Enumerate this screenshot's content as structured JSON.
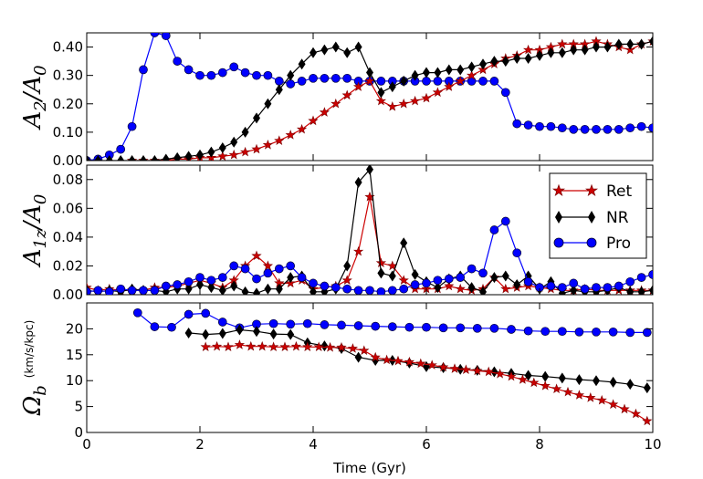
{
  "chart_data": [
    {
      "type": "line",
      "panel": "top",
      "ylabel": "A_2/A_0",
      "ylabel_parts": {
        "main": "A",
        "sub": "2",
        "sep": "/A",
        "sub2": "0"
      },
      "xlim": [
        0,
        10
      ],
      "ylim": [
        0,
        0.45
      ],
      "yticks": [
        0.0,
        0.1,
        0.2,
        0.3,
        0.4
      ],
      "ytick_labels": [
        "0.00",
        "0.10",
        "0.20",
        "0.30",
        "0.40"
      ],
      "series": [
        {
          "name": "Ret",
          "color": "#cc0000",
          "marker": "star",
          "x": [
            0.8,
            1.0,
            1.2,
            1.4,
            1.6,
            1.8,
            2.0,
            2.2,
            2.4,
            2.6,
            2.8,
            3.0,
            3.2,
            3.4,
            3.6,
            3.8,
            4.0,
            4.2,
            4.4,
            4.6,
            4.8,
            5.0,
            5.2,
            5.4,
            5.6,
            5.8,
            6.0,
            6.2,
            6.4,
            6.6,
            6.8,
            7.0,
            7.2,
            7.4,
            7.6,
            7.8,
            8.0,
            8.2,
            8.4,
            8.6,
            8.8,
            9.0,
            9.2,
            9.4,
            9.6,
            9.8,
            10.0
          ],
          "values": [
            0.0,
            0.0,
            0.0,
            0.0,
            0.005,
            0.005,
            0.01,
            0.01,
            0.015,
            0.02,
            0.03,
            0.04,
            0.055,
            0.07,
            0.09,
            0.11,
            0.14,
            0.17,
            0.2,
            0.23,
            0.26,
            0.28,
            0.21,
            0.19,
            0.2,
            0.21,
            0.22,
            0.24,
            0.26,
            0.28,
            0.3,
            0.32,
            0.34,
            0.36,
            0.37,
            0.39,
            0.39,
            0.4,
            0.41,
            0.41,
            0.41,
            0.42,
            0.41,
            0.4,
            0.39,
            0.41,
            0.42
          ]
        },
        {
          "name": "NR",
          "color": "#000000",
          "marker": "diamond",
          "x": [
            0.0,
            0.2,
            0.4,
            0.6,
            0.8,
            1.0,
            1.2,
            1.4,
            1.6,
            1.8,
            2.0,
            2.2,
            2.4,
            2.6,
            2.8,
            3.0,
            3.2,
            3.4,
            3.6,
            3.8,
            4.0,
            4.2,
            4.4,
            4.6,
            4.8,
            5.0,
            5.2,
            5.4,
            5.6,
            5.8,
            6.0,
            6.2,
            6.4,
            6.6,
            6.8,
            7.0,
            7.2,
            7.4,
            7.6,
            7.8,
            8.0,
            8.2,
            8.4,
            8.6,
            8.8,
            9.0,
            9.2,
            9.4,
            9.6,
            9.8,
            10.0
          ],
          "values": [
            0.0,
            0.0,
            0.0,
            0.0,
            0.0,
            0.0,
            0.0,
            0.005,
            0.01,
            0.015,
            0.02,
            0.03,
            0.045,
            0.065,
            0.1,
            0.15,
            0.2,
            0.25,
            0.3,
            0.34,
            0.38,
            0.39,
            0.4,
            0.38,
            0.4,
            0.31,
            0.24,
            0.26,
            0.28,
            0.3,
            0.31,
            0.31,
            0.32,
            0.32,
            0.33,
            0.34,
            0.35,
            0.35,
            0.36,
            0.36,
            0.37,
            0.38,
            0.38,
            0.39,
            0.39,
            0.4,
            0.4,
            0.41,
            0.41,
            0.41,
            0.42
          ]
        },
        {
          "name": "Pro",
          "color": "#0000ff",
          "marker": "circle",
          "x": [
            0.0,
            0.2,
            0.4,
            0.6,
            0.8,
            1.0,
            1.2,
            1.4,
            1.6,
            1.8,
            2.0,
            2.2,
            2.4,
            2.6,
            2.8,
            3.0,
            3.2,
            3.4,
            3.6,
            3.8,
            4.0,
            4.2,
            4.4,
            4.6,
            4.8,
            5.0,
            5.2,
            5.4,
            5.6,
            5.8,
            6.0,
            6.2,
            6.4,
            6.6,
            6.8,
            7.0,
            7.2,
            7.4,
            7.6,
            7.8,
            8.0,
            8.2,
            8.4,
            8.6,
            8.8,
            9.0,
            9.2,
            9.4,
            9.6,
            9.8,
            10.0
          ],
          "values": [
            0.0,
            0.005,
            0.02,
            0.04,
            0.12,
            0.32,
            0.45,
            0.44,
            0.35,
            0.32,
            0.3,
            0.3,
            0.31,
            0.33,
            0.31,
            0.3,
            0.3,
            0.28,
            0.27,
            0.28,
            0.29,
            0.29,
            0.29,
            0.29,
            0.28,
            0.28,
            0.28,
            0.28,
            0.28,
            0.28,
            0.28,
            0.28,
            0.28,
            0.28,
            0.28,
            0.28,
            0.28,
            0.24,
            0.13,
            0.125,
            0.12,
            0.12,
            0.115,
            0.11,
            0.11,
            0.11,
            0.11,
            0.11,
            0.115,
            0.12,
            0.115
          ]
        }
      ]
    },
    {
      "type": "line",
      "panel": "middle",
      "ylabel": "A_1z/A_0",
      "ylabel_parts": {
        "main": "A",
        "sub": "1z",
        "sep": "/A",
        "sub2": "0"
      },
      "xlim": [
        0,
        10
      ],
      "ylim": [
        0,
        0.09
      ],
      "yticks": [
        0.0,
        0.02,
        0.04,
        0.06,
        0.08
      ],
      "ytick_labels": [
        "0.00",
        "0.02",
        "0.04",
        "0.06",
        "0.08"
      ],
      "legend": {
        "position": "upper-right",
        "entries": [
          "Ret",
          "NR",
          "Pro"
        ]
      },
      "series": [
        {
          "name": "Ret",
          "color": "#cc0000",
          "marker": "star",
          "x": [
            0.0,
            0.2,
            0.4,
            0.6,
            0.8,
            1.0,
            1.2,
            1.4,
            1.6,
            1.8,
            2.0,
            2.2,
            2.4,
            2.6,
            2.8,
            3.0,
            3.2,
            3.4,
            3.6,
            3.8,
            4.0,
            4.2,
            4.4,
            4.6,
            4.8,
            5.0,
            5.2,
            5.4,
            5.6,
            5.8,
            6.0,
            6.2,
            6.4,
            6.6,
            6.8,
            7.0,
            7.2,
            7.4,
            7.6,
            7.8,
            8.0,
            8.2,
            8.4,
            8.6,
            8.8,
            9.0,
            9.2,
            9.4,
            9.6,
            9.8,
            10.0
          ],
          "values": [
            0.005,
            0.003,
            0.004,
            0.003,
            0.003,
            0.003,
            0.005,
            0.005,
            0.006,
            0.008,
            0.01,
            0.008,
            0.005,
            0.01,
            0.02,
            0.027,
            0.02,
            0.008,
            0.008,
            0.01,
            0.004,
            0.005,
            0.006,
            0.01,
            0.03,
            0.068,
            0.022,
            0.02,
            0.01,
            0.004,
            0.004,
            0.004,
            0.006,
            0.004,
            0.003,
            0.004,
            0.012,
            0.004,
            0.005,
            0.006,
            0.005,
            0.004,
            0.003,
            0.003,
            0.004,
            0.003,
            0.003,
            0.003,
            0.003,
            0.003,
            0.003
          ]
        },
        {
          "name": "NR",
          "color": "#000000",
          "marker": "diamond",
          "x": [
            0.0,
            0.2,
            0.4,
            0.6,
            0.8,
            1.0,
            1.2,
            1.4,
            1.6,
            1.8,
            2.0,
            2.2,
            2.4,
            2.6,
            2.8,
            3.0,
            3.2,
            3.4,
            3.6,
            3.8,
            4.0,
            4.2,
            4.4,
            4.6,
            4.8,
            5.0,
            5.2,
            5.4,
            5.6,
            5.8,
            6.0,
            6.2,
            6.4,
            6.6,
            6.8,
            7.0,
            7.2,
            7.4,
            7.6,
            7.8,
            8.0,
            8.2,
            8.4,
            8.6,
            8.8,
            9.0,
            9.2,
            9.4,
            9.6,
            9.8,
            10.0
          ],
          "values": [
            0.003,
            0.002,
            0.003,
            0.002,
            0.004,
            0.003,
            0.003,
            0.002,
            0.004,
            0.004,
            0.007,
            0.005,
            0.003,
            0.006,
            0.002,
            0.001,
            0.004,
            0.004,
            0.012,
            0.013,
            0.002,
            0.002,
            0.004,
            0.02,
            0.078,
            0.087,
            0.015,
            0.013,
            0.036,
            0.014,
            0.009,
            0.005,
            0.011,
            0.013,
            0.005,
            0.002,
            0.012,
            0.013,
            0.007,
            0.013,
            0.004,
            0.009,
            0.001,
            0.003,
            0.002,
            0.002,
            0.003,
            0.005,
            0.002,
            0.002,
            0.003
          ]
        },
        {
          "name": "Pro",
          "color": "#0000ff",
          "marker": "circle",
          "x": [
            0.0,
            0.2,
            0.4,
            0.6,
            0.8,
            1.0,
            1.2,
            1.4,
            1.6,
            1.8,
            2.0,
            2.2,
            2.4,
            2.6,
            2.8,
            3.0,
            3.2,
            3.4,
            3.6,
            3.8,
            4.0,
            4.2,
            4.4,
            4.6,
            4.8,
            5.0,
            5.2,
            5.4,
            5.6,
            5.8,
            6.0,
            6.2,
            6.4,
            6.6,
            6.8,
            7.0,
            7.2,
            7.4,
            7.6,
            7.8,
            8.0,
            8.2,
            8.4,
            8.6,
            8.8,
            9.0,
            9.2,
            9.4,
            9.6,
            9.8,
            10.0
          ],
          "values": [
            0.002,
            0.003,
            0.002,
            0.004,
            0.003,
            0.003,
            0.003,
            0.006,
            0.007,
            0.009,
            0.012,
            0.01,
            0.012,
            0.02,
            0.018,
            0.011,
            0.015,
            0.018,
            0.02,
            0.012,
            0.008,
            0.006,
            0.005,
            0.004,
            0.003,
            0.003,
            0.002,
            0.003,
            0.004,
            0.007,
            0.008,
            0.01,
            0.011,
            0.012,
            0.018,
            0.015,
            0.045,
            0.051,
            0.029,
            0.009,
            0.005,
            0.006,
            0.005,
            0.008,
            0.004,
            0.005,
            0.005,
            0.006,
            0.009,
            0.012,
            0.014
          ]
        }
      ]
    },
    {
      "type": "line",
      "panel": "bottom",
      "ylabel": "Ω_b (km/s/kpc)",
      "ylabel_parts": {
        "main": "Ω",
        "sub": "b",
        "unit": "(km/s/kpc)"
      },
      "xlabel": "Time (Gyr)",
      "xlim": [
        0,
        10
      ],
      "ylim": [
        0,
        25
      ],
      "yticks": [
        0,
        5,
        10,
        15,
        20
      ],
      "ytick_labels": [
        "0",
        "5",
        "10",
        "15",
        "20"
      ],
      "xticks": [
        0,
        2,
        4,
        6,
        8,
        10
      ],
      "xtick_labels": [
        "0",
        "2",
        "4",
        "6",
        "8",
        "10"
      ],
      "series": [
        {
          "name": "Ret",
          "color": "#cc0000",
          "marker": "star",
          "x": [
            2.1,
            2.3,
            2.5,
            2.7,
            2.9,
            3.1,
            3.3,
            3.5,
            3.7,
            3.9,
            4.1,
            4.3,
            4.5,
            4.7,
            4.9,
            5.1,
            5.3,
            5.5,
            5.7,
            5.9,
            6.1,
            6.3,
            6.5,
            6.7,
            6.9,
            7.1,
            7.3,
            7.5,
            7.7,
            7.9,
            8.1,
            8.3,
            8.5,
            8.7,
            8.9,
            9.1,
            9.3,
            9.5,
            9.7,
            9.9
          ],
          "values": [
            16.5,
            16.6,
            16.5,
            16.9,
            16.6,
            16.6,
            16.5,
            16.5,
            16.6,
            16.5,
            16.5,
            16.4,
            16.4,
            16.2,
            15.8,
            14.5,
            14.0,
            13.8,
            13.6,
            13.3,
            13.0,
            12.6,
            12.3,
            12.1,
            11.9,
            11.7,
            11.3,
            10.8,
            10.2,
            9.6,
            9.0,
            8.4,
            7.8,
            7.2,
            6.7,
            6.2,
            5.4,
            4.5,
            3.6,
            2.2
          ]
        },
        {
          "name": "NR",
          "color": "#000000",
          "marker": "diamond",
          "x": [
            1.8,
            2.1,
            2.4,
            2.7,
            3.0,
            3.3,
            3.6,
            3.9,
            4.2,
            4.5,
            4.8,
            5.1,
            5.4,
            5.7,
            6.0,
            6.3,
            6.6,
            6.9,
            7.2,
            7.5,
            7.8,
            8.1,
            8.4,
            8.7,
            9.0,
            9.3,
            9.6,
            9.9
          ],
          "values": [
            19.2,
            18.9,
            19.1,
            19.8,
            19.5,
            19.0,
            18.9,
            17.3,
            16.7,
            16.2,
            14.5,
            13.9,
            13.9,
            13.4,
            12.7,
            12.5,
            12.2,
            12.0,
            11.7,
            11.4,
            11.0,
            10.8,
            10.5,
            10.2,
            10.0,
            9.7,
            9.3,
            8.6
          ]
        },
        {
          "name": "Pro",
          "color": "#0000ff",
          "marker": "circle",
          "x": [
            0.9,
            1.2,
            1.5,
            1.8,
            2.1,
            2.4,
            2.7,
            3.0,
            3.3,
            3.6,
            3.9,
            4.2,
            4.5,
            4.8,
            5.1,
            5.4,
            5.7,
            6.0,
            6.3,
            6.6,
            6.9,
            7.2,
            7.5,
            7.8,
            8.1,
            8.4,
            8.7,
            9.0,
            9.3,
            9.6,
            9.9
          ],
          "values": [
            23.1,
            20.4,
            20.3,
            22.8,
            23.0,
            21.3,
            20.2,
            20.9,
            21.0,
            20.9,
            21.0,
            20.8,
            20.7,
            20.6,
            20.5,
            20.4,
            20.3,
            20.3,
            20.2,
            20.2,
            20.1,
            20.1,
            19.9,
            19.6,
            19.5,
            19.5,
            19.4,
            19.4,
            19.4,
            19.3,
            19.3
          ]
        }
      ]
    }
  ]
}
